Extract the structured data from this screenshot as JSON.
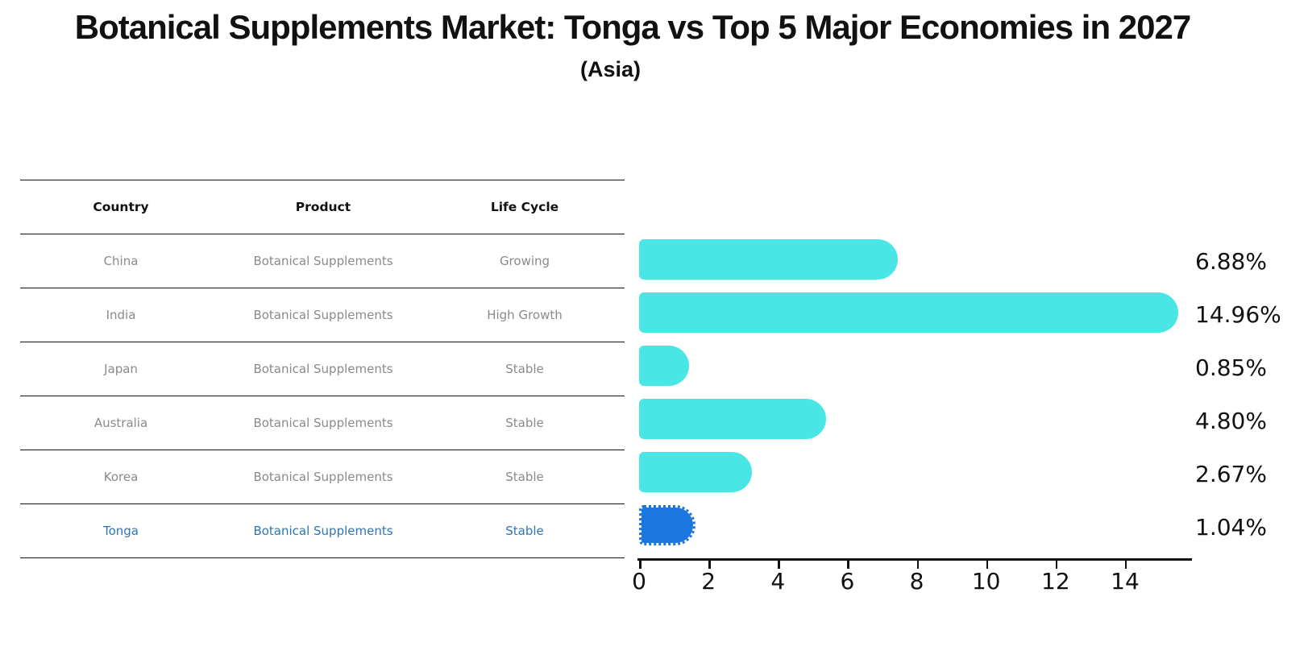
{
  "page": {
    "title": "Botanical Supplements Market: Tonga vs Top 5 Major Economies in 2027",
    "subtitle": "(Asia)"
  },
  "table": {
    "columns": [
      "Country",
      "Product",
      "Life Cycle"
    ],
    "rows": [
      {
        "country": "China",
        "product": "Botanical Supplements",
        "life_cycle": "Growing",
        "highlight": false
      },
      {
        "country": "India",
        "product": "Botanical Supplements",
        "life_cycle": "High Growth",
        "highlight": false
      },
      {
        "country": "Japan",
        "product": "Botanical Supplements",
        "life_cycle": "Stable",
        "highlight": false
      },
      {
        "country": "Australia",
        "product": "Botanical Supplements",
        "life_cycle": "Stable",
        "highlight": false
      },
      {
        "country": "Korea",
        "product": "Botanical Supplements",
        "life_cycle": "Stable",
        "highlight": false
      },
      {
        "country": "Tonga",
        "product": "Botanical Supplements",
        "life_cycle": "Stable",
        "highlight": true
      }
    ]
  },
  "chart_data": {
    "type": "bar",
    "orientation": "horizontal",
    "title": "Botanical Supplements Market: Tonga vs Top 5 Major Economies in 2027",
    "subtitle": "(Asia)",
    "categories": [
      "China",
      "India",
      "Japan",
      "Australia",
      "Korea",
      "Tonga"
    ],
    "values": [
      6.88,
      14.96,
      0.85,
      4.8,
      2.67,
      1.04
    ],
    "value_labels": [
      "6.88%",
      "14.96%",
      "0.85%",
      "4.80%",
      "2.67%",
      "1.04%"
    ],
    "highlight_index": 5,
    "xlabel": "",
    "ylabel": "",
    "xlim": [
      0,
      15.8
    ],
    "x_ticks": [
      0,
      2,
      4,
      6,
      8,
      10,
      12,
      14
    ],
    "grid": false,
    "legend": false,
    "colors": {
      "bar": "#4AE6E6",
      "highlight_bar": "#1C76E0",
      "highlight_text": "#2E75B6",
      "table_text": "#8A8A8A",
      "text": "#111111"
    }
  }
}
